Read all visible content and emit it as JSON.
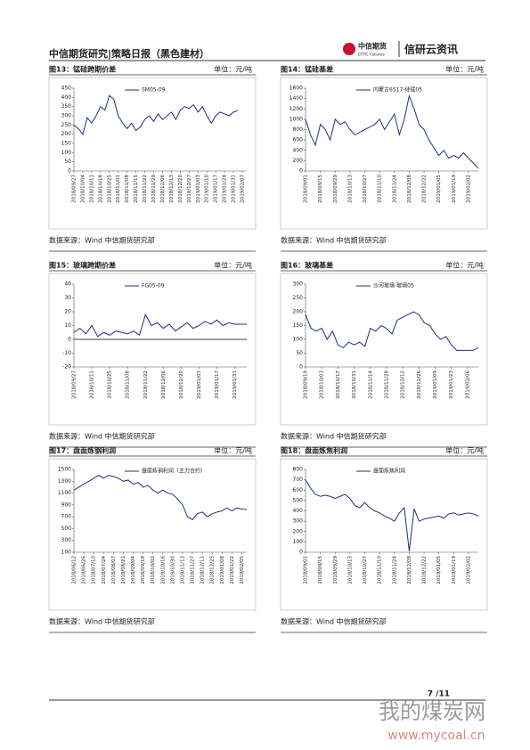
{
  "header": {
    "title": "中信期货研究|策略日报（黑色建材）",
    "logo_cn": "中信期货",
    "logo_en": "CITIC Futures",
    "brand": "信研云资讯"
  },
  "panels": [
    {
      "title": "图13：锰硅跨期价差",
      "unit": "单位：元/吨",
      "source": "数据来源：Wind  中信期货研究部",
      "chart": {
        "type": "line",
        "ylim": [
          0,
          450
        ],
        "yticks": [
          0,
          50,
          100,
          150,
          200,
          250,
          300,
          350,
          400,
          450
        ],
        "categories": [
          "2018/09/27",
          null,
          "2018/10/04",
          null,
          "2018/10/11",
          null,
          "2018/10/18",
          null,
          "2018/10/25",
          null,
          "2018/11/01",
          null,
          "2018/11/08",
          null,
          "2018/11/15",
          null,
          "2018/11/22",
          null,
          "2018/11/29",
          null,
          "2018/12/06",
          null,
          "2018/12/13",
          null,
          "2018/12/20",
          null,
          "2018/12/27",
          null,
          "2019/01/03",
          null,
          "2019/01/10",
          null,
          "2019/01/17",
          null,
          "2019/01/24",
          null,
          "2019/01/31",
          null,
          "2019/02/07",
          null
        ],
        "series": [
          {
            "name": "SM05-09",
            "color": "#1f2f7a",
            "values": [
              250,
              230,
              200,
              290,
              260,
              300,
              350,
              330,
              410,
              390,
              300,
              260,
              230,
              260,
              220,
              240,
              280,
              300,
              270,
              310,
              280,
              300,
              320,
              280,
              330,
              350,
              340,
              360,
              320,
              350,
              300,
              260,
              300,
              320,
              310,
              300,
              320,
              330,
              null,
              null
            ]
          }
        ]
      }
    },
    {
      "title": "图14：锰硅基差",
      "unit": "单位：元/吨",
      "source": "数据来源：Wind  中信期货研究部",
      "chart": {
        "type": "line",
        "ylim": [
          0,
          1600
        ],
        "yticks": [
          0,
          200,
          400,
          600,
          800,
          1000,
          1200,
          1400,
          1600
        ],
        "categories": [
          "2018/09/01",
          null,
          null,
          "2018/09/15",
          null,
          null,
          "2018/09/29",
          null,
          null,
          "2018/10/13",
          null,
          null,
          "2018/10/27",
          null,
          null,
          "2018/11/10",
          null,
          null,
          "2018/11/24",
          null,
          null,
          "2018/12/08",
          null,
          null,
          "2018/12/22",
          null,
          null,
          "2019/01/05",
          null,
          null,
          "2019/01/19",
          null,
          null,
          "2019/02/02",
          null,
          null
        ],
        "series": [
          {
            "name": "内蒙古6517-硅锰05",
            "color": "#1f2f7a",
            "values": [
              1000,
              700,
              500,
              900,
              800,
              600,
              1000,
              900,
              950,
              800,
              700,
              750,
              800,
              850,
              900,
              1000,
              800,
              950,
              1100,
              700,
              1000,
              1450,
              1200,
              900,
              800,
              600,
              450,
              300,
              400,
              250,
              300,
              250,
              350,
              250,
              150,
              50
            ]
          }
        ]
      }
    },
    {
      "title": "图15：玻璃跨期价差",
      "unit": "单位：元/吨",
      "source": "数据来源：Wind  中信期货研究部",
      "chart": {
        "type": "line",
        "ylim": [
          -20,
          40
        ],
        "yticks": [
          -20,
          -10,
          0,
          10,
          20,
          30,
          40
        ],
        "zero_line": true,
        "categories": [
          "2018/09/27",
          null,
          null,
          "2018/10/11",
          null,
          null,
          "2018/10/25",
          null,
          null,
          "2018/11/08",
          null,
          null,
          "2018/11/22",
          null,
          null,
          "2018/12/06",
          null,
          null,
          "2018/12/20",
          null,
          null,
          "2019/01/03",
          null,
          null,
          "2019/01/17",
          null,
          null,
          "2019/01/31",
          null,
          null
        ],
        "series": [
          {
            "name": "FG05-09",
            "color": "#1f2f7a",
            "values": [
              5,
              8,
              4,
              10,
              2,
              5,
              3,
              6,
              5,
              4,
              6,
              3,
              18,
              10,
              12,
              8,
              11,
              6,
              9,
              12,
              8,
              10,
              13,
              11,
              14,
              10,
              12,
              11,
              11,
              11
            ]
          }
        ]
      }
    },
    {
      "title": "图16：玻璃基差",
      "unit": "单位：元/吨",
      "source": "数据来源：Wind  中信期货研究部",
      "chart": {
        "type": "line",
        "ylim": [
          0,
          300
        ],
        "yticks": [
          0,
          50,
          100,
          150,
          200,
          250,
          300
        ],
        "categories": [
          "2018/09/19",
          null,
          null,
          "2018/10/03",
          null,
          null,
          "2018/10/17",
          null,
          null,
          "2018/10/31",
          null,
          null,
          "2018/11/14",
          null,
          null,
          "2018/11/28",
          null,
          null,
          "2018/12/12",
          null,
          null,
          "2018/12/26",
          null,
          null,
          "2019/01/09",
          null,
          null,
          "2019/01/23",
          null,
          null,
          "2019/02/06",
          null,
          null
        ],
        "series": [
          {
            "name": "沙河玻璃-玻璃05",
            "color": "#1f2f7a",
            "values": [
              190,
              140,
              130,
              140,
              100,
              130,
              80,
              70,
              90,
              80,
              90,
              75,
              140,
              130,
              150,
              140,
              120,
              170,
              180,
              190,
              200,
              190,
              160,
              150,
              120,
              100,
              110,
              80,
              60,
              60,
              60,
              60,
              70
            ]
          }
        ]
      }
    },
    {
      "title": "图17：盘面炼钢利润",
      "unit": "单位：元/吨",
      "source": "数据来源：Wind  中信期货研究部",
      "chart": {
        "type": "line",
        "ylim": [
          100,
          1500
        ],
        "yticks": [
          100,
          300,
          500,
          700,
          900,
          1100,
          1300,
          1500
        ],
        "categories": [
          "2018/06/12",
          null,
          "2018/06/26",
          null,
          "2018/07/10",
          null,
          "2018/07/24",
          null,
          "2018/08/07",
          null,
          "2018/08/21",
          null,
          "2018/09/04",
          null,
          "2018/09/18",
          null,
          "2018/10/02",
          null,
          "2018/10/16",
          null,
          "2018/10/30",
          null,
          "2018/11/13",
          null,
          "2018/11/27",
          null,
          "2018/12/11",
          null,
          "2018/12/25",
          null,
          "2019/01/08",
          null,
          "2019/01/22",
          null,
          "2019/02/05",
          null
        ],
        "series": [
          {
            "name": "盘面炼钢利润（主力合约）",
            "color": "#1f2f7a",
            "values": [
              1150,
              1200,
              1250,
              1300,
              1350,
              1400,
              1350,
              1400,
              1380,
              1350,
              1300,
              1320,
              1250,
              1280,
              1200,
              1230,
              1150,
              1100,
              1150,
              1100,
              1080,
              1000,
              900,
              700,
              650,
              750,
              780,
              700,
              750,
              780,
              800,
              850,
              800,
              850,
              830,
              820
            ]
          }
        ]
      }
    },
    {
      "title": "图18：盘面炼焦利润",
      "unit": "单位：元/吨",
      "source": "数据来源：Wind  中信期货研究部",
      "chart": {
        "type": "line",
        "ylim": [
          0,
          800
        ],
        "yticks": [
          0,
          100,
          200,
          300,
          400,
          500,
          600,
          700,
          800
        ],
        "categories": [
          "2018/09/01",
          null,
          null,
          "2018/09/15",
          null,
          null,
          "2018/09/29",
          null,
          null,
          "2018/10/13",
          null,
          null,
          "2018/10/27",
          null,
          null,
          "2018/11/10",
          null,
          null,
          "2018/11/24",
          null,
          null,
          "2018/12/08",
          null,
          null,
          "2018/12/22",
          null,
          null,
          "2019/01/05",
          null,
          null,
          "2019/01/19",
          null,
          null,
          "2019/02/02",
          null,
          null
        ],
        "series": [
          {
            "name": "盘面炼焦利润",
            "color": "#1f2f7a",
            "values": [
              700,
              620,
              560,
              540,
              550,
              540,
              520,
              540,
              560,
              520,
              450,
              430,
              480,
              430,
              400,
              380,
              350,
              330,
              300,
              380,
              430,
              10,
              420,
              300,
              320,
              330,
              340,
              350,
              330,
              370,
              380,
              360,
              370,
              380,
              370,
              350
            ]
          }
        ]
      }
    }
  ],
  "footer": {
    "page": "7 /11"
  },
  "watermark": {
    "name": "我的煤炭网",
    "url": "www.mycoal.cn"
  }
}
